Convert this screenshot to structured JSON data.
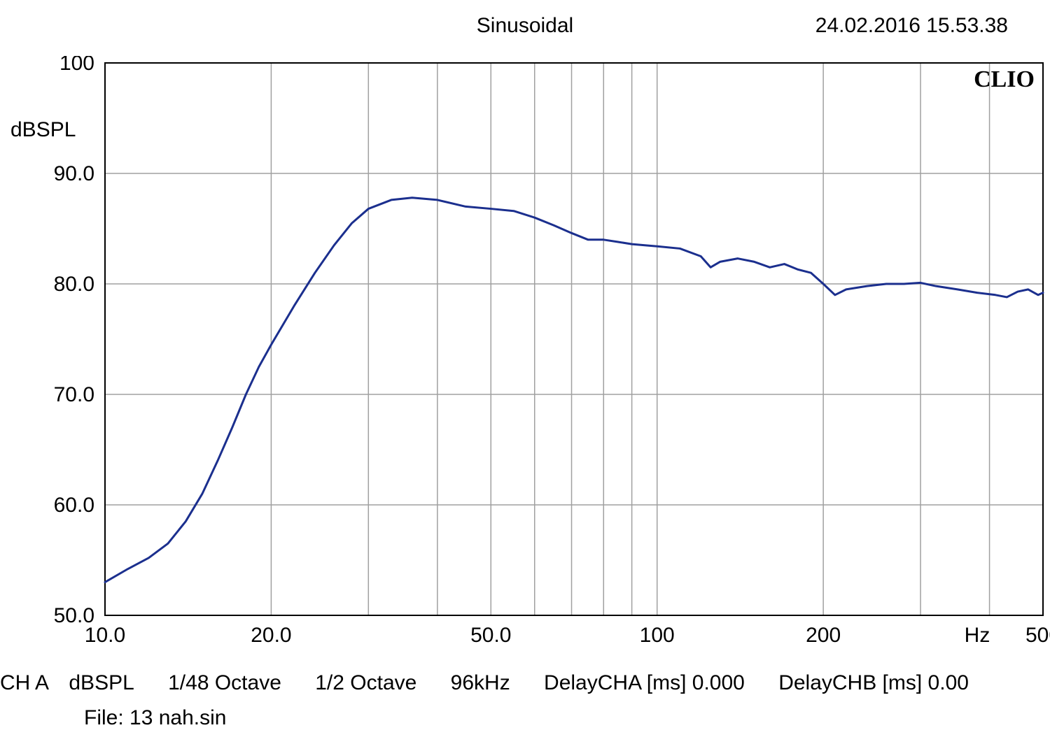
{
  "header": {
    "title": "Sinusoidal",
    "timestamp": "24.02.2016 15.53.38"
  },
  "watermark": "CLIO",
  "chart": {
    "type": "line-log-x",
    "plot_bg": "#ffffff",
    "grid_color": "#a0a0a0",
    "border_color": "#000000",
    "line_color": "#1b2f8e",
    "line_width": 3,
    "xlim": [
      10,
      500
    ],
    "ylim": [
      50,
      100
    ],
    "x_ticks_labeled": [
      {
        "v": 10,
        "label": "10.0"
      },
      {
        "v": 20,
        "label": "20.0"
      },
      {
        "v": 50,
        "label": "50.0"
      },
      {
        "v": 100,
        "label": "100"
      },
      {
        "v": 200,
        "label": "200"
      },
      {
        "v": 500,
        "label": "500"
      }
    ],
    "x_ticks_unlabeled": [
      30,
      40,
      60,
      70,
      80,
      90,
      300,
      400
    ],
    "x_unit_label": "Hz",
    "x_unit_label_at": 380,
    "y_ticks": [
      {
        "v": 50,
        "label": "50.0"
      },
      {
        "v": 60,
        "label": "60.0"
      },
      {
        "v": 70,
        "label": "70.0"
      },
      {
        "v": 80,
        "label": "80.0"
      },
      {
        "v": 90,
        "label": "90.0"
      },
      {
        "v": 100,
        "label": "100"
      }
    ],
    "y_unit_label": "dBSPL",
    "y_unit_label_at": 94,
    "series": [
      {
        "x": 10.0,
        "y": 53.0
      },
      {
        "x": 11.0,
        "y": 54.2
      },
      {
        "x": 12.0,
        "y": 55.2
      },
      {
        "x": 13.0,
        "y": 56.5
      },
      {
        "x": 14.0,
        "y": 58.5
      },
      {
        "x": 15.0,
        "y": 61.0
      },
      {
        "x": 16.0,
        "y": 64.0
      },
      {
        "x": 17.0,
        "y": 67.0
      },
      {
        "x": 18.0,
        "y": 70.0
      },
      {
        "x": 19.0,
        "y": 72.5
      },
      {
        "x": 20.0,
        "y": 74.5
      },
      {
        "x": 22.0,
        "y": 78.0
      },
      {
        "x": 24.0,
        "y": 81.0
      },
      {
        "x": 26.0,
        "y": 83.5
      },
      {
        "x": 28.0,
        "y": 85.5
      },
      {
        "x": 30.0,
        "y": 86.8
      },
      {
        "x": 33.0,
        "y": 87.6
      },
      {
        "x": 36.0,
        "y": 87.8
      },
      {
        "x": 40.0,
        "y": 87.6
      },
      {
        "x": 45.0,
        "y": 87.0
      },
      {
        "x": 50.0,
        "y": 86.8
      },
      {
        "x": 55.0,
        "y": 86.6
      },
      {
        "x": 60.0,
        "y": 86.0
      },
      {
        "x": 65.0,
        "y": 85.3
      },
      {
        "x": 70.0,
        "y": 84.6
      },
      {
        "x": 75.0,
        "y": 84.0
      },
      {
        "x": 80.0,
        "y": 84.0
      },
      {
        "x": 85.0,
        "y": 83.8
      },
      {
        "x": 90.0,
        "y": 83.6
      },
      {
        "x": 95.0,
        "y": 83.5
      },
      {
        "x": 100.0,
        "y": 83.4
      },
      {
        "x": 110.0,
        "y": 83.2
      },
      {
        "x": 120.0,
        "y": 82.5
      },
      {
        "x": 125.0,
        "y": 81.5
      },
      {
        "x": 130.0,
        "y": 82.0
      },
      {
        "x": 140.0,
        "y": 82.3
      },
      {
        "x": 150.0,
        "y": 82.0
      },
      {
        "x": 160.0,
        "y": 81.5
      },
      {
        "x": 170.0,
        "y": 81.8
      },
      {
        "x": 180.0,
        "y": 81.3
      },
      {
        "x": 190.0,
        "y": 81.0
      },
      {
        "x": 200.0,
        "y": 80.0
      },
      {
        "x": 210.0,
        "y": 79.0
      },
      {
        "x": 220.0,
        "y": 79.5
      },
      {
        "x": 240.0,
        "y": 79.8
      },
      {
        "x": 260.0,
        "y": 80.0
      },
      {
        "x": 280.0,
        "y": 80.0
      },
      {
        "x": 300.0,
        "y": 80.1
      },
      {
        "x": 320.0,
        "y": 79.8
      },
      {
        "x": 350.0,
        "y": 79.5
      },
      {
        "x": 380.0,
        "y": 79.2
      },
      {
        "x": 410.0,
        "y": 79.0
      },
      {
        "x": 430.0,
        "y": 78.8
      },
      {
        "x": 450.0,
        "y": 79.3
      },
      {
        "x": 470.0,
        "y": 79.5
      },
      {
        "x": 490.0,
        "y": 79.0
      },
      {
        "x": 500.0,
        "y": 79.2
      }
    ]
  },
  "info": {
    "ch": "CH A",
    "unit": "dBSPL",
    "res1": "1/48 Octave",
    "res2": "1/2 Octave",
    "fs": "96kHz",
    "delayA": "DelayCHA [ms] 0.000",
    "delayB": "DelayCHB [ms] 0.00",
    "file": "File: 13 nah.sin"
  }
}
